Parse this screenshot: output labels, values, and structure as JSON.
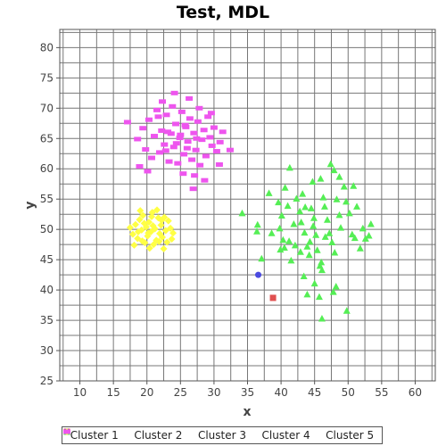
{
  "chart_data": {
    "type": "scatter",
    "title": "Test, MDL",
    "xlabel": "x",
    "ylabel": "y",
    "xlim": [
      7,
      63
    ],
    "ylim": [
      25,
      83
    ],
    "xticks": [
      10,
      15,
      20,
      25,
      30,
      35,
      40,
      45,
      50,
      55,
      60
    ],
    "yticks": [
      25,
      30,
      35,
      40,
      45,
      50,
      55,
      60,
      65,
      70,
      75,
      80
    ],
    "grid": true,
    "legend_position": "bottom",
    "series": [
      {
        "name": "Cluster 1",
        "color": "#e05050",
        "marker": "square",
        "points": [
          [
            38.8,
            38.7
          ]
        ]
      },
      {
        "name": "Cluster 2",
        "color": "#4a4ae0",
        "marker": "circle",
        "points": [
          [
            36.6,
            42.5
          ]
        ]
      },
      {
        "name": "Cluster 3",
        "color": "#55ee55",
        "marker": "triangle",
        "points": [
          [
            34.2,
            52.7
          ],
          [
            36.5,
            50.8
          ],
          [
            36.4,
            49.7
          ],
          [
            37.1,
            45.2
          ],
          [
            38.2,
            56.0
          ],
          [
            39.6,
            54.5
          ],
          [
            40.1,
            52.3
          ],
          [
            39.8,
            50.2
          ],
          [
            40.5,
            47.0
          ],
          [
            41.2,
            48.1
          ],
          [
            41.5,
            44.9
          ],
          [
            41.9,
            50.9
          ],
          [
            42.3,
            55.1
          ],
          [
            42.8,
            53.0
          ],
          [
            43.0,
            51.2
          ],
          [
            43.5,
            49.5
          ],
          [
            43.9,
            47.2
          ],
          [
            44.2,
            45.8
          ],
          [
            44.5,
            53.5
          ],
          [
            44.9,
            51.9
          ],
          [
            45.2,
            49.1
          ],
          [
            45.4,
            46.6
          ],
          [
            45.8,
            44.0
          ],
          [
            46.1,
            43.3
          ],
          [
            46.5,
            53.8
          ],
          [
            46.9,
            51.6
          ],
          [
            47.2,
            49.4
          ],
          [
            47.6,
            47.9
          ],
          [
            48.0,
            46.2
          ],
          [
            48.3,
            55.0
          ],
          [
            48.7,
            52.4
          ],
          [
            48.9,
            50.3
          ],
          [
            49.4,
            57.1
          ],
          [
            49.7,
            54.6
          ],
          [
            50.2,
            52.7
          ],
          [
            50.6,
            49.2
          ],
          [
            51.0,
            48.6
          ],
          [
            51.3,
            53.8
          ],
          [
            51.8,
            46.9
          ],
          [
            52.2,
            50.2
          ],
          [
            52.6,
            48.5
          ],
          [
            53.1,
            49.0
          ],
          [
            53.4,
            50.9
          ],
          [
            41.3,
            60.2
          ],
          [
            44.7,
            57.9
          ],
          [
            47.4,
            60.8
          ],
          [
            47.9,
            59.8
          ],
          [
            48.7,
            58.7
          ],
          [
            48.2,
            40.6
          ],
          [
            47.8,
            39.7
          ],
          [
            43.9,
            39.3
          ],
          [
            45.7,
            38.9
          ],
          [
            46.1,
            35.3
          ],
          [
            49.8,
            36.6
          ],
          [
            46.0,
            44.6
          ],
          [
            44.3,
            48.0
          ],
          [
            43.4,
            42.3
          ],
          [
            45.0,
            41.1
          ],
          [
            42.9,
            46.3
          ],
          [
            40.6,
            56.9
          ],
          [
            39.9,
            46.7
          ],
          [
            38.6,
            49.4
          ],
          [
            44.8,
            50.6
          ],
          [
            46.6,
            48.8
          ],
          [
            43.6,
            53.7
          ],
          [
            42.1,
            47.4
          ],
          [
            41.0,
            53.9
          ],
          [
            46.3,
            55.3
          ],
          [
            45.9,
            58.4
          ],
          [
            50.8,
            57.2
          ],
          [
            43.2,
            55.9
          ],
          [
            40.3,
            48.3
          ]
        ]
      },
      {
        "name": "Cluster 4",
        "color": "#ffff44",
        "marker": "diamond",
        "points": [
          [
            17.9,
            49.2
          ],
          [
            18.3,
            50.8
          ],
          [
            18.6,
            48.5
          ],
          [
            18.9,
            51.6
          ],
          [
            19.2,
            49.9
          ],
          [
            19.4,
            52.3
          ],
          [
            19.7,
            47.8
          ],
          [
            19.9,
            50.4
          ],
          [
            20.1,
            48.9
          ],
          [
            20.3,
            51.2
          ],
          [
            20.6,
            49.6
          ],
          [
            20.8,
            52.8
          ],
          [
            21.0,
            47.5
          ],
          [
            21.2,
            50.1
          ],
          [
            21.4,
            48.2
          ],
          [
            21.7,
            51.9
          ],
          [
            21.9,
            49.3
          ],
          [
            22.1,
            50.7
          ],
          [
            22.3,
            48.7
          ],
          [
            22.6,
            52.0
          ],
          [
            22.8,
            49.8
          ],
          [
            23.0,
            47.9
          ],
          [
            23.2,
            51.4
          ],
          [
            23.5,
            50.2
          ],
          [
            23.7,
            48.4
          ],
          [
            17.5,
            50.3
          ],
          [
            18.1,
            47.4
          ],
          [
            19.0,
            53.1
          ],
          [
            20.4,
            46.9
          ],
          [
            21.5,
            53.2
          ],
          [
            22.5,
            46.8
          ],
          [
            23.9,
            49.4
          ],
          [
            18.7,
            49.6
          ],
          [
            20.9,
            50.6
          ],
          [
            19.6,
            51.0
          ],
          [
            21.8,
            48.0
          ],
          [
            20.2,
            49.4
          ],
          [
            22.2,
            51.5
          ],
          [
            19.3,
            48.1
          ],
          [
            20.7,
            52.1
          ]
        ]
      },
      {
        "name": "Cluster 5",
        "color": "#ee55ee",
        "marker": "rect",
        "points": [
          [
            18.6,
            64.9
          ],
          [
            19.4,
            66.7
          ],
          [
            19.8,
            63.2
          ],
          [
            20.3,
            68.1
          ],
          [
            20.7,
            61.8
          ],
          [
            21.1,
            65.4
          ],
          [
            21.5,
            69.7
          ],
          [
            21.9,
            62.7
          ],
          [
            22.2,
            66.3
          ],
          [
            22.6,
            64.0
          ],
          [
            22.9,
            68.9
          ],
          [
            23.3,
            61.2
          ],
          [
            23.6,
            65.8
          ],
          [
            24.0,
            63.6
          ],
          [
            24.3,
            67.4
          ],
          [
            24.6,
            60.9
          ],
          [
            24.9,
            65.1
          ],
          [
            25.2,
            69.4
          ],
          [
            25.5,
            62.4
          ],
          [
            25.8,
            66.9
          ],
          [
            26.1,
            64.5
          ],
          [
            26.4,
            68.3
          ],
          [
            26.7,
            61.5
          ],
          [
            27.0,
            65.9
          ],
          [
            27.3,
            63.1
          ],
          [
            27.6,
            67.8
          ],
          [
            27.9,
            60.6
          ],
          [
            28.2,
            64.8
          ],
          [
            28.5,
            66.4
          ],
          [
            28.8,
            62.1
          ],
          [
            29.1,
            68.6
          ],
          [
            29.4,
            65.2
          ],
          [
            29.7,
            63.8
          ],
          [
            30.0,
            66.8
          ],
          [
            30.4,
            62.9
          ],
          [
            30.9,
            64.4
          ],
          [
            31.3,
            66.1
          ],
          [
            24.1,
            72.5
          ],
          [
            22.3,
            71.1
          ],
          [
            26.3,
            71.6
          ],
          [
            18.9,
            60.4
          ],
          [
            20.1,
            59.6
          ],
          [
            25.4,
            59.2
          ],
          [
            27.1,
            58.9
          ],
          [
            30.8,
            60.7
          ],
          [
            32.4,
            63.1
          ],
          [
            29.6,
            69.2
          ],
          [
            21.7,
            68.6
          ],
          [
            23.8,
            70.3
          ],
          [
            27.8,
            70.0
          ],
          [
            26.9,
            56.7
          ],
          [
            17.1,
            67.7
          ],
          [
            28.6,
            58.1
          ],
          [
            22.8,
            63.0
          ],
          [
            25.0,
            65.6
          ],
          [
            24.4,
            64.2
          ],
          [
            26.0,
            63.4
          ],
          [
            23.1,
            66.1
          ],
          [
            27.4,
            65.0
          ],
          [
            25.7,
            67.2
          ]
        ]
      }
    ]
  }
}
